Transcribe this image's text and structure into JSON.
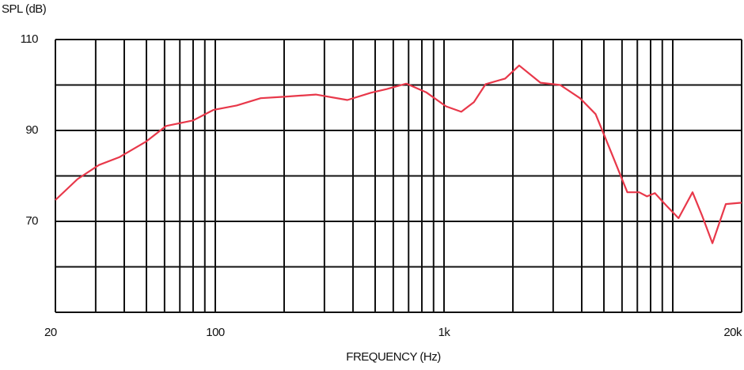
{
  "chart_data": {
    "type": "line",
    "x_label": "FREQUENCY (Hz)",
    "y_label": "SPL (dB)",
    "xscale": "log",
    "xlim": [
      20,
      20000
    ],
    "xticks": [
      20,
      100,
      {
        "value": 1000,
        "label": "1k"
      },
      {
        "value": 20000,
        "label": "20k"
      }
    ],
    "xgrid": [
      20,
      30,
      40,
      50,
      60,
      70,
      80,
      90,
      100,
      200,
      300,
      400,
      500,
      600,
      700,
      800,
      900,
      1000,
      2000,
      3000,
      4000,
      5000,
      6000,
      7000,
      8000,
      9000,
      10000,
      20000
    ],
    "ylim": [
      50,
      110
    ],
    "yticks": [
      70,
      90,
      110
    ],
    "ygrid": [
      50,
      60,
      70,
      80,
      90,
      100,
      110
    ],
    "series": [
      {
        "color": "#e8384a",
        "x": [
          20,
          25,
          31,
          38,
          50,
          61,
          80,
          98,
          124,
          158,
          200,
          275,
          378,
          479,
          561,
          684,
          835,
          1020,
          1190,
          1350,
          1520,
          1850,
          2130,
          2640,
          3220,
          3930,
          4600,
          5400,
          6330,
          7130,
          7710,
          8350,
          9400,
          10600,
          12200,
          13450,
          14900,
          17060,
          20000
        ],
        "values": [
          74.7,
          79.3,
          82.4,
          84.1,
          87.6,
          91.0,
          92.2,
          94.5,
          95.5,
          97.1,
          97.4,
          97.9,
          96.7,
          98.3,
          99.1,
          100.3,
          98.4,
          95.3,
          94.1,
          96.2,
          100.2,
          101.4,
          104.3,
          100.5,
          100.0,
          97.1,
          93.6,
          85.0,
          76.4,
          76.4,
          75.5,
          76.2,
          73.4,
          70.7,
          76.4,
          71.2,
          65.2,
          73.8,
          74.1
        ]
      }
    ]
  }
}
